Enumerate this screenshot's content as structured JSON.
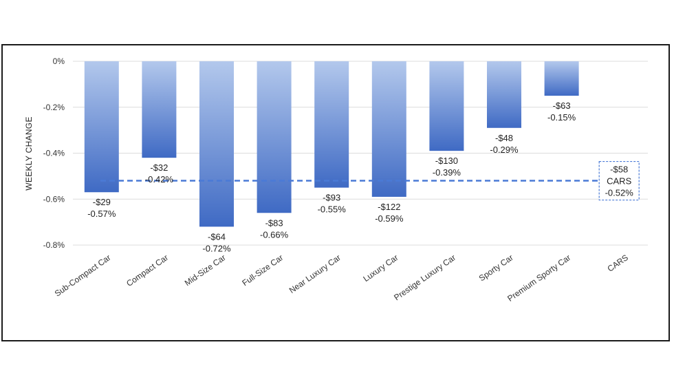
{
  "chart_data": {
    "type": "bar",
    "ylabel": "WEEKLY CHANGE",
    "xlabel": "",
    "ylim": [
      -0.8,
      0
    ],
    "yticks": [
      "0%",
      "-0.2%",
      "-0.4%",
      "-0.6%",
      "-0.8%"
    ],
    "ytick_values": [
      0,
      -0.2,
      -0.4,
      -0.6,
      -0.8
    ],
    "grid": true,
    "categories": [
      "Sub-Compact Car",
      "Compact Car",
      "Mid-Size Car",
      "Full-Size Car",
      "Near Luxury Car",
      "Luxury Car",
      "Prestige Luxury Car",
      "Sporty Car",
      "Premium Sporty Car",
      "CARS"
    ],
    "values": [
      -0.57,
      -0.42,
      -0.72,
      -0.66,
      -0.55,
      -0.59,
      -0.39,
      -0.29,
      -0.15,
      null
    ],
    "dollar_labels": [
      "-$29",
      "-$32",
      "-$64",
      "-$83",
      "-$93",
      "-$122",
      "-$130",
      "-$48",
      "-$63",
      ""
    ],
    "percent_labels": [
      "-0.57%",
      "-0.42%",
      "-0.72%",
      "-0.66%",
      "-0.55%",
      "-0.59%",
      "-0.39%",
      "-0.29%",
      "-0.15%",
      ""
    ],
    "reference_line": {
      "value": -0.52,
      "dollar_label": "-$58",
      "name_label": "CARS",
      "percent_label": "-0.52%"
    },
    "colors": {
      "bar_light": "#b3c8ec",
      "bar_dark": "#3f6ac4",
      "reference_line": "#4a7ad6",
      "grid": "#dcdcdc"
    }
  }
}
